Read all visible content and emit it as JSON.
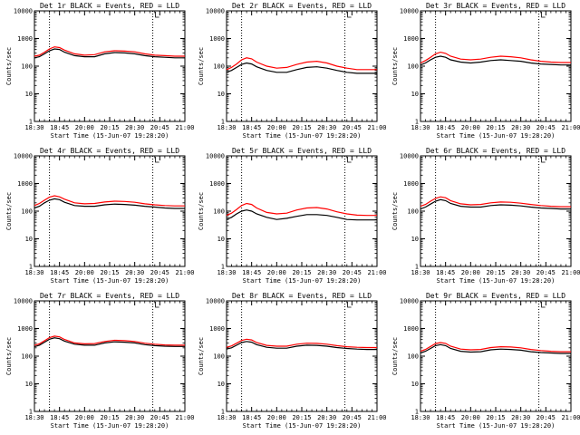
{
  "figure": {
    "start_time_label": "Start Time (15-Jun-07 19:28:20)",
    "y_axis_label": "Counts/sec",
    "x_tick_labels": [
      "18:30",
      "18:45",
      "20:00",
      "20:15",
      "20:30",
      "20:45",
      "21:00"
    ],
    "y_tick_labels": [
      "1",
      "10",
      "100",
      "1000",
      "10000"
    ],
    "black_color": "#000000",
    "red_color": "#ff0000"
  },
  "chart_data": [
    {
      "type": "line",
      "title": "Det 1r BLACK = Events, RED = LLD",
      "xlabel": "Start Time (15-Jun-07 19:28:20)",
      "ylabel": "Counts/sec",
      "x_unit": "minutes after 18:30",
      "x_range": [
        0,
        150
      ],
      "ylim": [
        1,
        10000
      ],
      "y_scale": "log",
      "x_ticks": [
        0,
        25,
        50,
        75,
        100,
        125,
        150
      ],
      "vlines": [
        15,
        118
      ],
      "series": [
        {
          "color": "#000000",
          "x": [
            0,
            5,
            10,
            15,
            20,
            25,
            30,
            40,
            50,
            60,
            70,
            80,
            90,
            100,
            110,
            120,
            130,
            140,
            150
          ],
          "y": [
            200,
            220,
            280,
            360,
            420,
            400,
            320,
            240,
            220,
            220,
            280,
            310,
            300,
            280,
            240,
            220,
            210,
            200,
            200
          ]
        },
        {
          "color": "#ff0000",
          "x": [
            0,
            5,
            10,
            15,
            20,
            25,
            30,
            40,
            50,
            60,
            70,
            80,
            90,
            100,
            110,
            120,
            130,
            140,
            150
          ],
          "y": [
            230,
            250,
            320,
            420,
            500,
            470,
            380,
            280,
            250,
            260,
            330,
            360,
            350,
            330,
            280,
            250,
            240,
            230,
            230
          ]
        }
      ]
    },
    {
      "type": "line",
      "title": "Det 2r BLACK = Events, RED = LLD",
      "xlabel": "Start Time (15-Jun-07 19:28:20)",
      "ylabel": "Counts/sec",
      "x_unit": "minutes after 18:30",
      "x_range": [
        0,
        150
      ],
      "ylim": [
        1,
        10000
      ],
      "y_scale": "log",
      "x_ticks": [
        0,
        25,
        50,
        75,
        100,
        125,
        150
      ],
      "vlines": [
        15,
        118
      ],
      "series": [
        {
          "color": "#000000",
          "x": [
            0,
            5,
            10,
            15,
            20,
            25,
            30,
            40,
            50,
            60,
            70,
            80,
            90,
            100,
            110,
            120,
            130,
            140,
            150
          ],
          "y": [
            60,
            70,
            90,
            115,
            130,
            120,
            95,
            70,
            60,
            60,
            75,
            90,
            95,
            85,
            70,
            60,
            55,
            55,
            55
          ]
        },
        {
          "color": "#ff0000",
          "x": [
            0,
            5,
            10,
            15,
            20,
            25,
            30,
            40,
            50,
            60,
            70,
            80,
            90,
            100,
            110,
            120,
            130,
            140,
            150
          ],
          "y": [
            75,
            90,
            120,
            170,
            200,
            185,
            140,
            100,
            85,
            90,
            115,
            140,
            150,
            130,
            100,
            85,
            75,
            75,
            75
          ]
        }
      ]
    },
    {
      "type": "line",
      "title": "Det 3r BLACK = Events, RED = LLD",
      "xlabel": "Start Time (15-Jun-07 19:28:20)",
      "ylabel": "Counts/sec",
      "x_unit": "minutes after 18:30",
      "x_range": [
        0,
        150
      ],
      "ylim": [
        1,
        10000
      ],
      "y_scale": "log",
      "x_ticks": [
        0,
        25,
        50,
        75,
        100,
        125,
        150
      ],
      "vlines": [
        15,
        118
      ],
      "series": [
        {
          "color": "#000000",
          "x": [
            0,
            5,
            10,
            15,
            20,
            25,
            30,
            40,
            50,
            60,
            70,
            80,
            90,
            100,
            110,
            120,
            130,
            140,
            150
          ],
          "y": [
            110,
            130,
            170,
            210,
            230,
            210,
            170,
            140,
            130,
            140,
            160,
            170,
            160,
            150,
            130,
            120,
            115,
            110,
            110
          ]
        },
        {
          "color": "#ff0000",
          "x": [
            0,
            5,
            10,
            15,
            20,
            25,
            30,
            40,
            50,
            60,
            70,
            80,
            90,
            100,
            110,
            120,
            130,
            140,
            150
          ],
          "y": [
            130,
            160,
            210,
            280,
            320,
            290,
            230,
            180,
            170,
            180,
            210,
            230,
            220,
            200,
            170,
            150,
            140,
            135,
            135
          ]
        }
      ]
    },
    {
      "type": "line",
      "title": "Det 4r BLACK = Events, RED = LLD",
      "xlabel": "Start Time (15-Jun-07 19:28:20)",
      "ylabel": "Counts/sec",
      "x_unit": "minutes after 18:30",
      "x_range": [
        0,
        150
      ],
      "ylim": [
        1,
        10000
      ],
      "y_scale": "log",
      "x_ticks": [
        0,
        25,
        50,
        75,
        100,
        125,
        150
      ],
      "vlines": [
        15,
        118
      ],
      "series": [
        {
          "color": "#000000",
          "x": [
            0,
            5,
            10,
            15,
            20,
            25,
            30,
            40,
            50,
            60,
            70,
            80,
            90,
            100,
            110,
            120,
            130,
            140,
            150
          ],
          "y": [
            130,
            150,
            200,
            250,
            280,
            260,
            210,
            160,
            150,
            150,
            170,
            180,
            175,
            165,
            150,
            140,
            130,
            125,
            125
          ]
        },
        {
          "color": "#ff0000",
          "x": [
            0,
            5,
            10,
            15,
            20,
            25,
            30,
            40,
            50,
            60,
            70,
            80,
            90,
            100,
            110,
            120,
            130,
            140,
            150
          ],
          "y": [
            160,
            190,
            250,
            320,
            360,
            330,
            270,
            200,
            185,
            190,
            215,
            230,
            225,
            210,
            185,
            170,
            160,
            155,
            155
          ]
        }
      ]
    },
    {
      "type": "line",
      "title": "Det 5r BLACK = Events, RED = LLD",
      "xlabel": "Start Time (15-Jun-07 19:28:20)",
      "ylabel": "Counts/sec",
      "x_unit": "minutes after 18:30",
      "x_range": [
        0,
        150
      ],
      "ylim": [
        1,
        10000
      ],
      "y_scale": "log",
      "x_ticks": [
        0,
        25,
        50,
        75,
        100,
        125,
        150
      ],
      "vlines": [
        15,
        118
      ],
      "series": [
        {
          "color": "#000000",
          "x": [
            0,
            5,
            10,
            15,
            20,
            25,
            30,
            40,
            50,
            60,
            70,
            80,
            90,
            100,
            110,
            120,
            130,
            140,
            150
          ],
          "y": [
            50,
            60,
            80,
            100,
            110,
            100,
            80,
            60,
            50,
            55,
            65,
            75,
            75,
            70,
            60,
            50,
            48,
            48,
            48
          ]
        },
        {
          "color": "#ff0000",
          "x": [
            0,
            5,
            10,
            15,
            20,
            25,
            30,
            40,
            50,
            60,
            70,
            80,
            90,
            100,
            110,
            120,
            130,
            140,
            150
          ],
          "y": [
            70,
            85,
            115,
            160,
            190,
            175,
            130,
            90,
            80,
            85,
            110,
            130,
            135,
            120,
            95,
            80,
            72,
            70,
            70
          ]
        }
      ]
    },
    {
      "type": "line",
      "title": "Det 6r BLACK = Events, RED = LLD",
      "xlabel": "Start Time (15-Jun-07 19:28:20)",
      "ylabel": "Counts/sec",
      "x_unit": "minutes after 18:30",
      "x_range": [
        0,
        150
      ],
      "ylim": [
        1,
        10000
      ],
      "y_scale": "log",
      "x_ticks": [
        0,
        25,
        50,
        75,
        100,
        125,
        150
      ],
      "vlines": [
        15,
        118
      ],
      "series": [
        {
          "color": "#000000",
          "x": [
            0,
            5,
            10,
            15,
            20,
            25,
            30,
            40,
            50,
            60,
            70,
            80,
            90,
            100,
            110,
            120,
            130,
            140,
            150
          ],
          "y": [
            120,
            140,
            180,
            230,
            260,
            240,
            190,
            150,
            140,
            140,
            160,
            170,
            165,
            155,
            140,
            130,
            125,
            120,
            120
          ]
        },
        {
          "color": "#ff0000",
          "x": [
            0,
            5,
            10,
            15,
            20,
            25,
            30,
            40,
            50,
            60,
            70,
            80,
            90,
            100,
            110,
            120,
            130,
            140,
            150
          ],
          "y": [
            150,
            175,
            230,
            290,
            330,
            305,
            240,
            185,
            170,
            175,
            200,
            215,
            210,
            195,
            175,
            160,
            150,
            145,
            145
          ]
        }
      ]
    },
    {
      "type": "line",
      "title": "Det 7r BLACK = Events, RED = LLD",
      "xlabel": "Start Time (15-Jun-07 19:28:20)",
      "ylabel": "Counts/sec",
      "x_unit": "minutes after 18:30",
      "x_range": [
        0,
        150
      ],
      "ylim": [
        1,
        10000
      ],
      "y_scale": "log",
      "x_ticks": [
        0,
        25,
        50,
        75,
        100,
        125,
        150
      ],
      "vlines": [
        15,
        118
      ],
      "series": [
        {
          "color": "#000000",
          "x": [
            0,
            5,
            10,
            15,
            20,
            25,
            30,
            40,
            50,
            60,
            70,
            80,
            90,
            100,
            110,
            120,
            130,
            140,
            150
          ],
          "y": [
            220,
            250,
            320,
            410,
            460,
            430,
            350,
            270,
            250,
            250,
            300,
            330,
            320,
            300,
            260,
            240,
            230,
            225,
            225
          ]
        },
        {
          "color": "#ff0000",
          "x": [
            0,
            5,
            10,
            15,
            20,
            25,
            30,
            40,
            50,
            60,
            70,
            80,
            90,
            100,
            110,
            120,
            130,
            140,
            150
          ],
          "y": [
            250,
            280,
            360,
            470,
            530,
            500,
            400,
            300,
            280,
            285,
            340,
            375,
            365,
            340,
            295,
            270,
            255,
            250,
            250
          ]
        }
      ]
    },
    {
      "type": "line",
      "title": "Det 8r BLACK = Events, RED = LLD",
      "xlabel": "Start Time (15-Jun-07 19:28:20)",
      "ylabel": "Counts/sec",
      "x_unit": "minutes after 18:30",
      "x_range": [
        0,
        150
      ],
      "ylim": [
        1,
        10000
      ],
      "y_scale": "log",
      "x_ticks": [
        0,
        25,
        50,
        75,
        100,
        125,
        150
      ],
      "vlines": [
        15,
        118
      ],
      "series": [
        {
          "color": "#000000",
          "x": [
            0,
            5,
            10,
            15,
            20,
            25,
            30,
            40,
            50,
            60,
            70,
            80,
            90,
            100,
            110,
            120,
            130,
            140,
            150
          ],
          "y": [
            180,
            200,
            250,
            310,
            340,
            320,
            260,
            210,
            195,
            195,
            230,
            250,
            245,
            230,
            205,
            190,
            180,
            175,
            175
          ]
        },
        {
          "color": "#ff0000",
          "x": [
            0,
            5,
            10,
            15,
            20,
            25,
            30,
            40,
            50,
            60,
            70,
            80,
            90,
            100,
            110,
            120,
            130,
            140,
            150
          ],
          "y": [
            210,
            235,
            295,
            370,
            410,
            385,
            310,
            245,
            230,
            230,
            270,
            295,
            290,
            270,
            240,
            220,
            210,
            205,
            205
          ]
        }
      ]
    },
    {
      "type": "line",
      "title": "Det 9r BLACK = Events, RED = LLD",
      "xlabel": "Start Time (15-Jun-07 19:28:20)",
      "ylabel": "Counts/sec",
      "x_unit": "minutes after 18:30",
      "x_range": [
        0,
        150
      ],
      "ylim": [
        1,
        10000
      ],
      "y_scale": "log",
      "x_ticks": [
        0,
        25,
        50,
        75,
        100,
        125,
        150
      ],
      "vlines": [
        15,
        118
      ],
      "series": [
        {
          "color": "#000000",
          "x": [
            0,
            5,
            10,
            15,
            20,
            25,
            30,
            40,
            50,
            60,
            70,
            80,
            90,
            100,
            110,
            120,
            130,
            140,
            150
          ],
          "y": [
            130,
            150,
            190,
            240,
            260,
            240,
            190,
            150,
            140,
            145,
            170,
            180,
            175,
            165,
            145,
            135,
            130,
            125,
            125
          ]
        },
        {
          "color": "#ff0000",
          "x": [
            0,
            5,
            10,
            15,
            20,
            25,
            30,
            40,
            50,
            60,
            70,
            80,
            90,
            100,
            110,
            120,
            130,
            140,
            150
          ],
          "y": [
            150,
            175,
            225,
            285,
            310,
            290,
            230,
            180,
            170,
            175,
            205,
            220,
            215,
            200,
            175,
            160,
            150,
            145,
            145
          ]
        }
      ]
    }
  ]
}
